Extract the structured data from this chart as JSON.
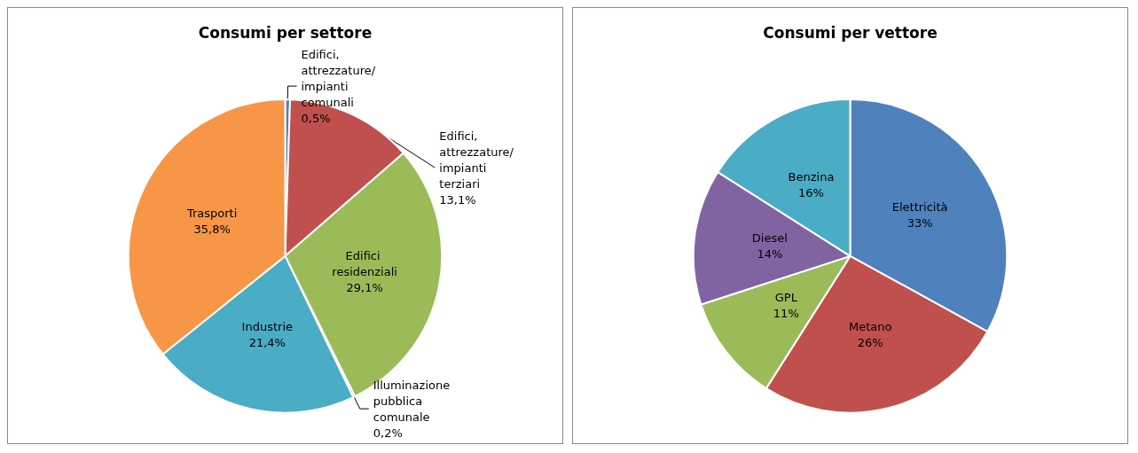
{
  "chart_data": [
    {
      "type": "pie",
      "title": "Consumi per settore",
      "categories": [
        "Edifici, attrezzature/ impianti comunali",
        "Edifici, attrezzature/ impianti terziari",
        "Edifici residenziali",
        "Illuminazione pubblica comunale",
        "Industrie",
        "Trasporti"
      ],
      "values": [
        0.5,
        13.1,
        29.1,
        0.2,
        21.4,
        35.8
      ],
      "value_labels": [
        "0,5%",
        "13,1%",
        "29,1%",
        "0,2%",
        "21,4%",
        "35,8%"
      ],
      "colors": [
        "#4f81bd",
        "#c0504d",
        "#9bbb59",
        "#8064a2",
        "#4bacc6",
        "#f79646"
      ]
    },
    {
      "type": "pie",
      "title": "Consumi per vettore",
      "categories": [
        "Elettricità",
        "Metano",
        "GPL",
        "Diesel",
        "Benzina"
      ],
      "values": [
        33,
        26,
        11,
        14,
        16
      ],
      "value_labels": [
        "33%",
        "26%",
        "11%",
        "14%",
        "16%"
      ],
      "colors": [
        "#4f81bd",
        "#c0504d",
        "#9bbb59",
        "#8064a2",
        "#4bacc6"
      ]
    }
  ]
}
